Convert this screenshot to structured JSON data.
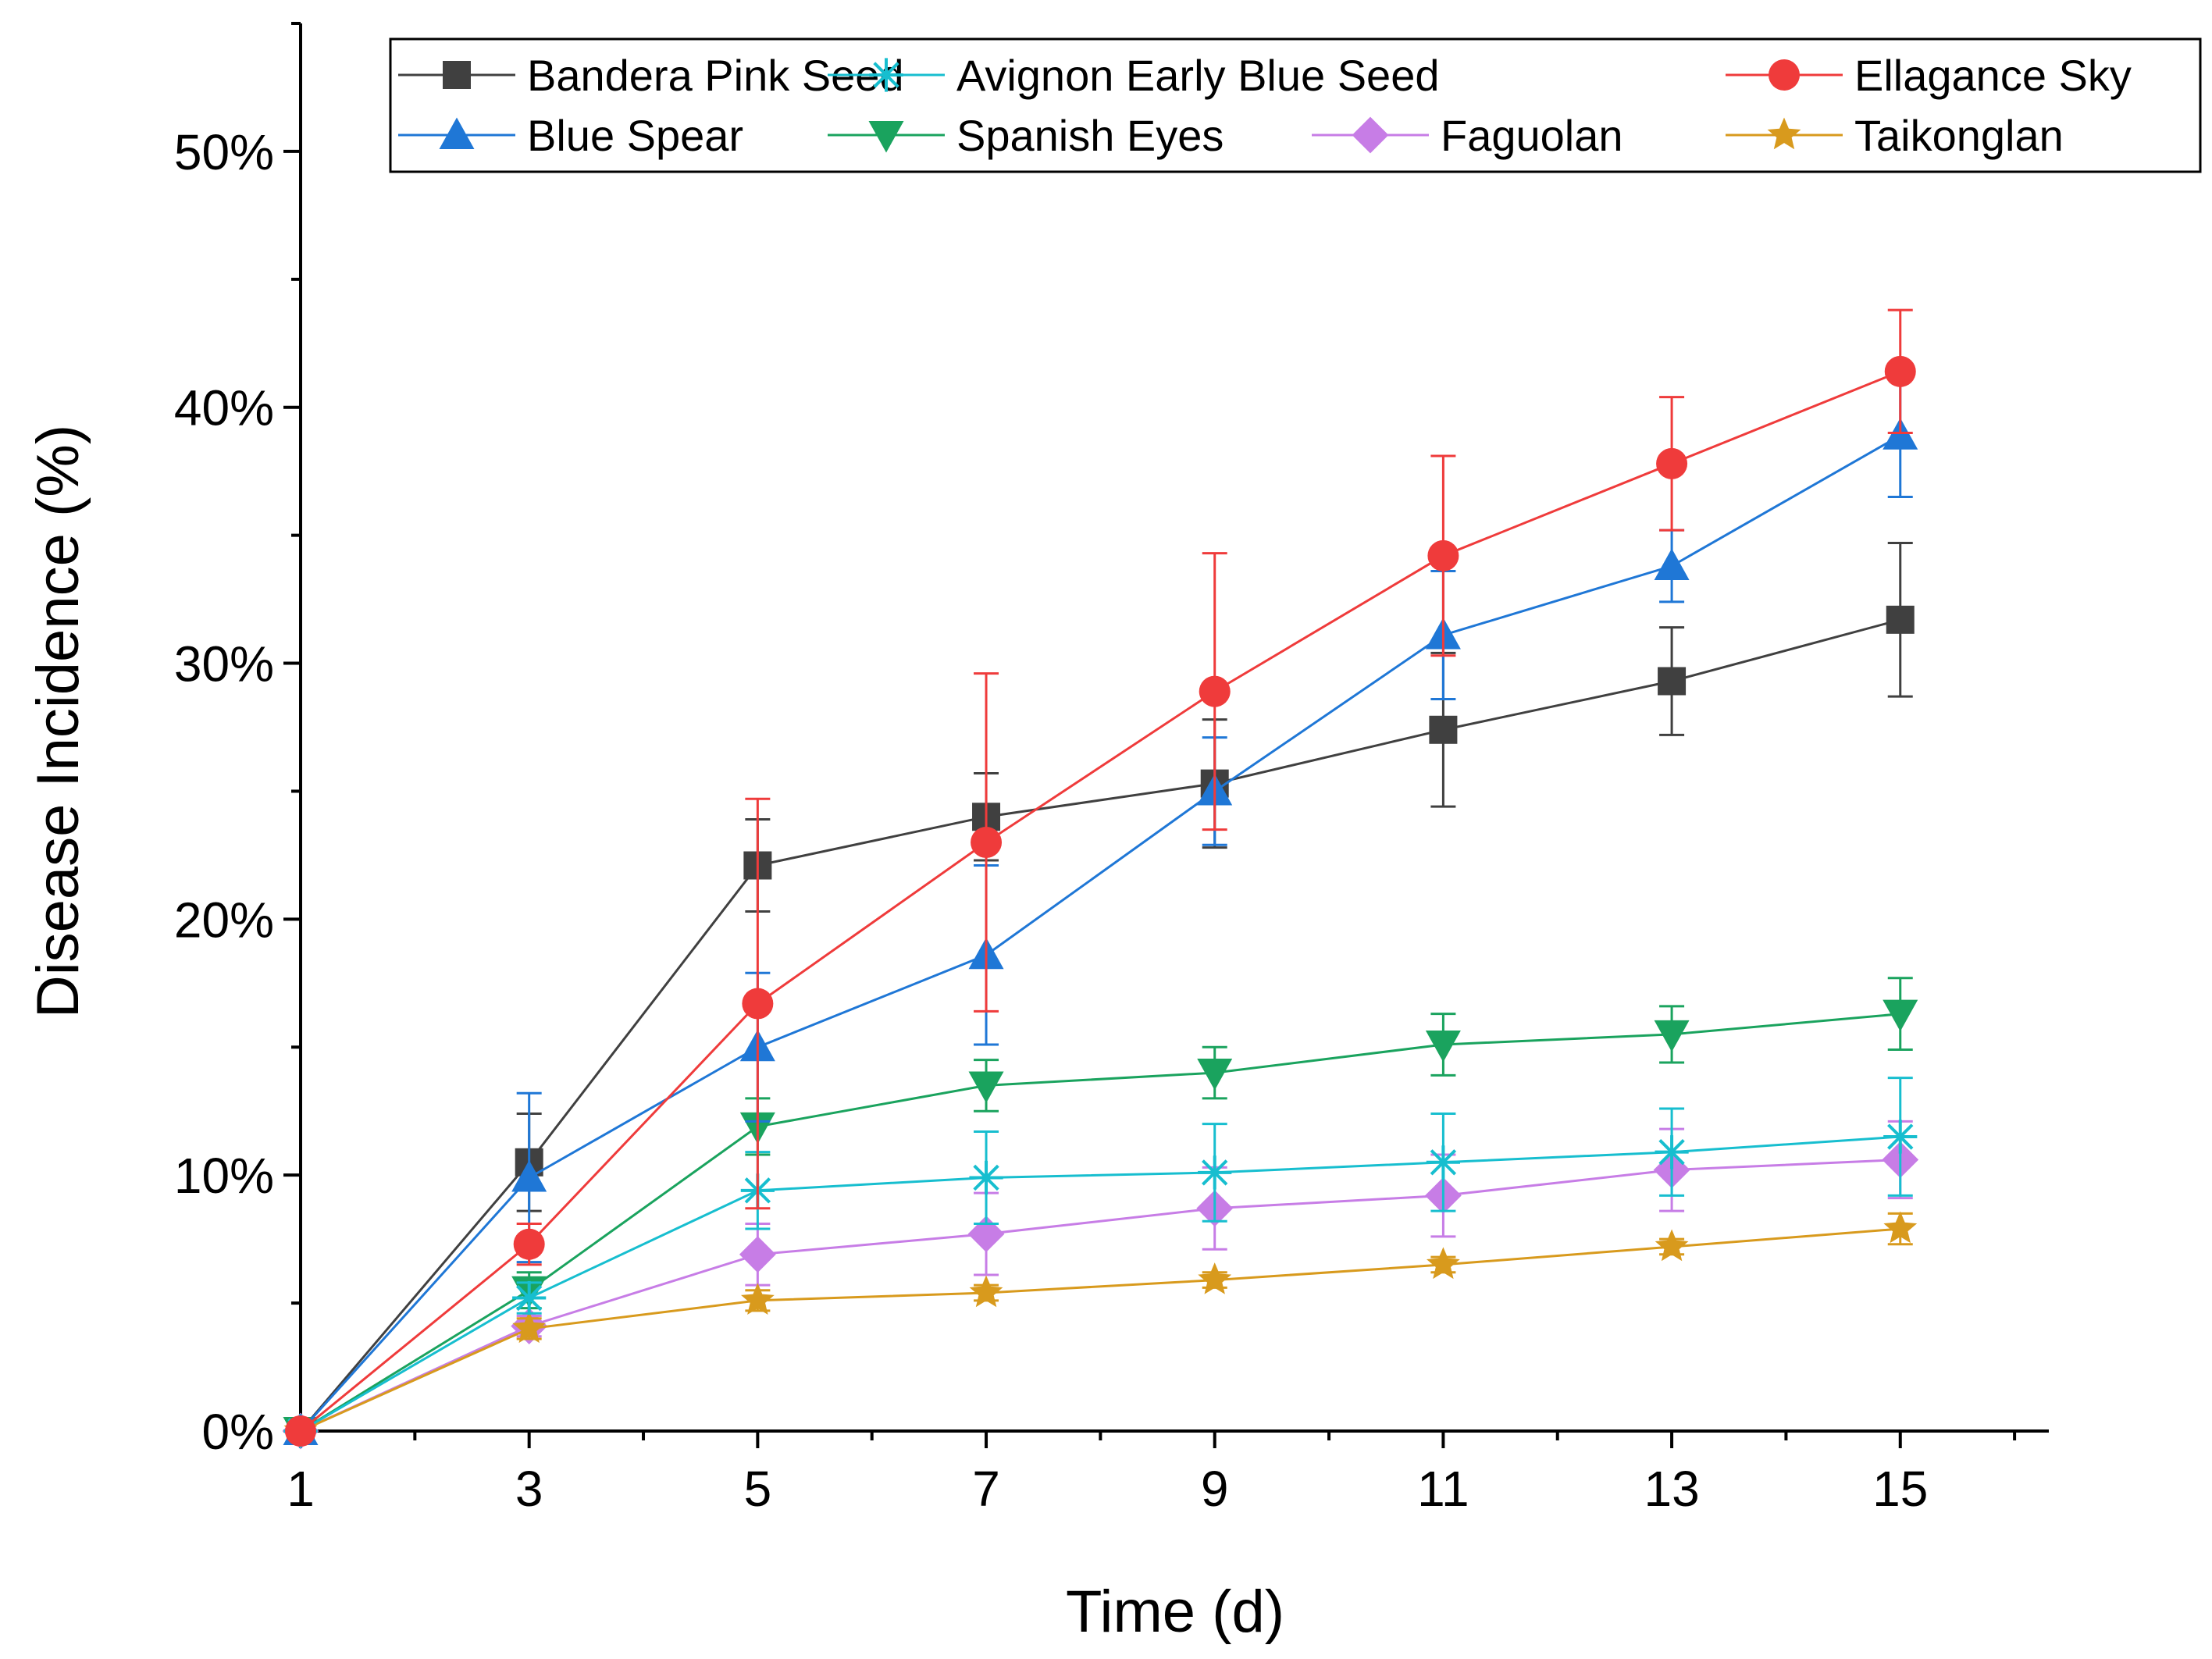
{
  "chart_data": {
    "type": "line",
    "title": "",
    "xlabel": "Time (d)",
    "ylabel": "Disease Incidence (%)",
    "x": [
      1,
      3,
      5,
      7,
      9,
      11,
      13,
      15
    ],
    "xlim": [
      1,
      16.3
    ],
    "ylim": [
      0,
      0.55
    ],
    "x_ticks": [
      1,
      3,
      5,
      7,
      9,
      11,
      13,
      15
    ],
    "x_tick_labels": [
      "1",
      "3",
      "5",
      "7",
      "9",
      "11",
      "13",
      "15"
    ],
    "y_ticks": [
      0,
      0.1,
      0.2,
      0.3,
      0.4,
      0.5
    ],
    "y_tick_labels": [
      "0%",
      "10%",
      "20%",
      "30%",
      "40%",
      "50%"
    ],
    "grid": false,
    "legend_position": "top",
    "series": [
      {
        "name": "Bandera Pink Seed",
        "color": "#404040",
        "marker": "square",
        "values": [
          0,
          0.105,
          0.221,
          0.24,
          0.253,
          0.274,
          0.293,
          0.317
        ],
        "errors": [
          0,
          0.019,
          0.018,
          0.017,
          0.025,
          0.03,
          0.021,
          0.03
        ]
      },
      {
        "name": "Avignon Early Blue Seed",
        "color": "#17becf",
        "marker": "asterisk",
        "values": [
          0,
          0.052,
          0.094,
          0.099,
          0.101,
          0.105,
          0.109,
          0.115
        ],
        "errors": [
          0,
          0.006,
          0.015,
          0.018,
          0.019,
          0.019,
          0.017,
          0.023
        ]
      },
      {
        "name": "Ellagance Sky",
        "color": "#ef3b3b",
        "marker": "circle",
        "values": [
          0,
          0.073,
          0.167,
          0.23,
          0.289,
          0.342,
          0.378,
          0.414
        ],
        "errors": [
          0,
          0.008,
          0.08,
          0.066,
          0.054,
          0.039,
          0.026,
          0.024
        ]
      },
      {
        "name": "Blue Spear",
        "color": "#1f77d6",
        "marker": "triangle-up",
        "values": [
          0,
          0.099,
          0.15,
          0.186,
          0.25,
          0.311,
          0.338,
          0.389
        ],
        "errors": [
          0,
          0.033,
          0.029,
          0.035,
          0.021,
          0.025,
          0.014,
          0.024
        ]
      },
      {
        "name": "Spanish Eyes",
        "color": "#1aa35e",
        "marker": "triangle-down",
        "values": [
          0,
          0.055,
          0.119,
          0.135,
          0.14,
          0.151,
          0.155,
          0.163
        ],
        "errors": [
          0,
          0.007,
          0.011,
          0.01,
          0.01,
          0.012,
          0.011,
          0.014
        ]
      },
      {
        "name": "Faguolan",
        "color": "#c77de6",
        "marker": "diamond",
        "values": [
          0,
          0.041,
          0.069,
          0.077,
          0.087,
          0.092,
          0.102,
          0.106
        ],
        "errors": [
          0,
          0.004,
          0.012,
          0.016,
          0.016,
          0.016,
          0.016,
          0.015
        ]
      },
      {
        "name": "Taikonglan",
        "color": "#d89a1d",
        "marker": "star",
        "values": [
          0,
          0.04,
          0.051,
          0.054,
          0.059,
          0.065,
          0.072,
          0.079
        ],
        "errors": [
          0,
          0.004,
          0.004,
          0.003,
          0.003,
          0.003,
          0.003,
          0.006
        ]
      }
    ]
  }
}
